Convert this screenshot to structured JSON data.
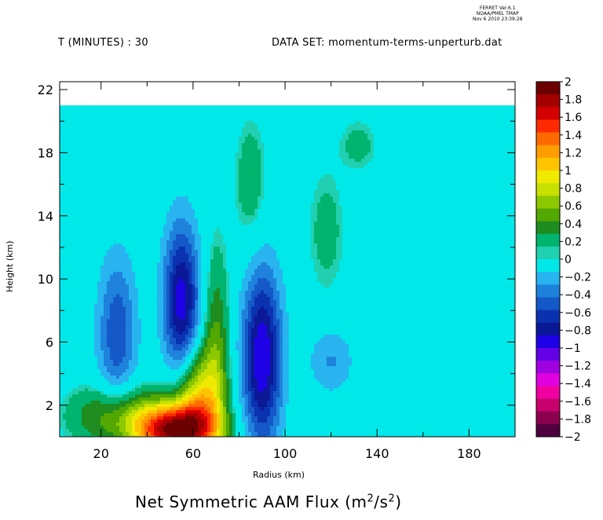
{
  "header": {
    "ferret_line1": "FERRET  Ver.6.1",
    "ferret_line2": "NOAA/PMEL TMAP",
    "ferret_line3": "Nov  6 2010 23:39:28",
    "time_label": "T (MINUTES) : 30",
    "dataset_label": "DATA SET: momentum-terms-unperturb.dat"
  },
  "chart_data": {
    "type": "heatmap",
    "title_main": "Net Symmetric AAM Flux (m",
    "title_unit_sup1": "2",
    "title_unit_mid": "/s",
    "title_unit_sup2": "2",
    "title_close": ")",
    "xlabel": "Radius (km)",
    "ylabel": "Height (km)",
    "xlim": [
      2,
      200
    ],
    "ylim": [
      0,
      22.5
    ],
    "data_top": 21,
    "xticks": [
      20,
      60,
      100,
      140,
      180
    ],
    "yticks": [
      2,
      6,
      10,
      14,
      18,
      22
    ],
    "background_value": 0,
    "blobs": [
      {
        "x": 52,
        "y": 0.4,
        "sx": 12,
        "sy": 1.2,
        "amp": 1.8
      },
      {
        "x": 62,
        "y": 2.5,
        "sx": 7,
        "sy": 2.2,
        "amp": 0.9
      },
      {
        "x": 27,
        "y": 1.3,
        "sx": 14,
        "sy": 1.4,
        "amp": 0.55
      },
      {
        "x": 70,
        "y": 5.5,
        "sx": 4,
        "sy": 4.5,
        "amp": 0.45
      },
      {
        "x": 55,
        "y": 8.5,
        "sx": 5.5,
        "sy": 3.5,
        "amp": -0.95
      },
      {
        "x": 90,
        "y": 5.0,
        "sx": 6.0,
        "sy": 4.0,
        "amp": -1.0
      },
      {
        "x": 27,
        "y": 6.5,
        "sx": 6,
        "sy": 3.5,
        "amp": -0.55
      },
      {
        "x": 120,
        "y": 4.8,
        "sx": 7,
        "sy": 1.5,
        "amp": -0.3
      },
      {
        "x": 85,
        "y": 16,
        "sx": 5,
        "sy": 3,
        "amp": 0.25
      },
      {
        "x": 118,
        "y": 13,
        "sx": 6,
        "sy": 3,
        "amp": 0.2
      },
      {
        "x": 132,
        "y": 18.5,
        "sx": 6,
        "sy": 1.2,
        "amp": 0.2
      }
    ],
    "colorbar": {
      "levels": [
        -2,
        -1.8,
        -1.6,
        -1.4,
        -1.2,
        -1,
        -0.8,
        -0.6,
        -0.4,
        -0.2,
        0,
        0.2,
        0.4,
        0.6,
        0.8,
        1,
        1.2,
        1.4,
        1.6,
        1.8,
        2
      ],
      "labels": [
        "2",
        "1.8",
        "1.6",
        "1.4",
        "1.2",
        "1",
        "0.8",
        "0.6",
        "0.4",
        "0.2",
        "0",
        "−0.2",
        "−0.4",
        "−0.6",
        "−0.8",
        "−1",
        "−1.2",
        "−1.4",
        "−1.6",
        "−1.8",
        "−2"
      ],
      "colors_top_to_bottom": [
        "#6b0000",
        "#a50000",
        "#d40000",
        "#ff2a00",
        "#ff6a00",
        "#ff9c00",
        "#ffc400",
        "#f0ea00",
        "#c8e000",
        "#8cc800",
        "#52a800",
        "#1e8c1e",
        "#00b46e",
        "#20d0b0",
        "#00e8e8",
        "#28b4f0",
        "#1e82dc",
        "#1458c8",
        "#0a32b0",
        "#0a1896",
        "#1e00e6",
        "#6400e6",
        "#a000e0",
        "#e000e0",
        "#f000a0",
        "#c8006e",
        "#8c0050",
        "#500040"
      ]
    }
  }
}
